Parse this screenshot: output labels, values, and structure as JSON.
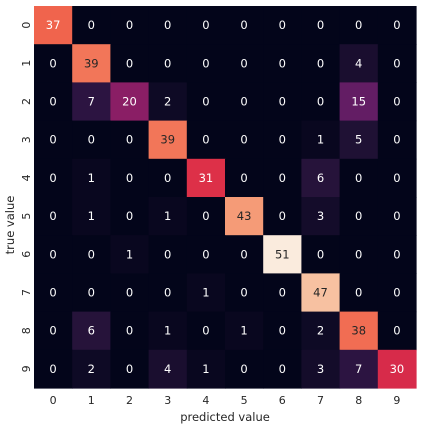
{
  "chart_data": {
    "type": "heatmap",
    "xlabel": "predicted value",
    "ylabel": "true value",
    "x_ticks": [
      "0",
      "1",
      "2",
      "3",
      "4",
      "5",
      "6",
      "7",
      "8",
      "9"
    ],
    "y_ticks": [
      "0",
      "1",
      "2",
      "3",
      "4",
      "5",
      "6",
      "7",
      "8",
      "9"
    ],
    "matrix": [
      [
        37,
        0,
        0,
        0,
        0,
        0,
        0,
        0,
        0,
        0
      ],
      [
        0,
        39,
        0,
        0,
        0,
        0,
        0,
        0,
        4,
        0
      ],
      [
        0,
        7,
        20,
        2,
        0,
        0,
        0,
        0,
        15,
        0
      ],
      [
        0,
        0,
        0,
        39,
        0,
        0,
        0,
        1,
        5,
        0
      ],
      [
        0,
        1,
        0,
        0,
        31,
        0,
        0,
        6,
        0,
        0
      ],
      [
        0,
        1,
        0,
        1,
        0,
        43,
        0,
        3,
        0,
        0
      ],
      [
        0,
        0,
        1,
        0,
        0,
        0,
        51,
        0,
        0,
        0
      ],
      [
        0,
        0,
        0,
        0,
        1,
        0,
        0,
        47,
        0,
        0
      ],
      [
        0,
        6,
        0,
        1,
        0,
        1,
        0,
        2,
        38,
        0
      ],
      [
        0,
        2,
        0,
        4,
        1,
        0,
        0,
        3,
        7,
        30
      ]
    ],
    "value_range": [
      0,
      51
    ],
    "colormap": "rocket",
    "colorbar": false,
    "annotated": true
  }
}
